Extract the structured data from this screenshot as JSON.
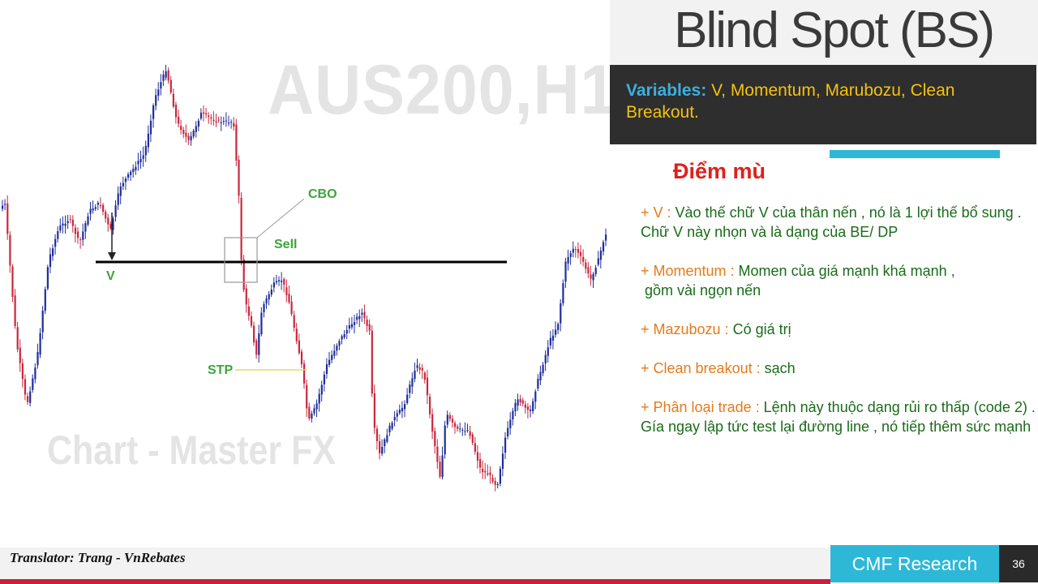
{
  "chart": {
    "symbol_watermark": "AUS200,H1",
    "brand_watermark": "Chart - Master FX",
    "annotations": {
      "cbo": "CBO",
      "sell": "Sell",
      "v": "V",
      "stp": "STP"
    },
    "colors": {
      "bull": "#1f2e9a",
      "bear": "#c8283e",
      "level_line": "#000000",
      "annotation": "#3aa63a",
      "stp_line": "#e8d85a"
    }
  },
  "panel": {
    "title": "Blind Spot (BS)",
    "variables_label": "Variables:",
    "variables_text": " V, Momentum, Marubozu, Clean Breakout.",
    "subtitle": "Điểm mù",
    "notes": [
      {
        "key": "+ V :",
        "text": " Vào thế chữ V của thân nến , nó là 1 lợi thế bổ sung . Chữ V này nhọn và là dạng của BE/ DP"
      },
      {
        "key": "+ Momentum :",
        "text": " Momen của giá mạnh khá mạnh ,\n gồm vài ngọn nến"
      },
      {
        "key": "+ Mazubozu :",
        "text": " Có giá trị"
      },
      {
        "key": "+ Clean breakout :",
        "text": " sạch"
      },
      {
        "key": "+ Phân loại trade :",
        "text": " Lệnh này thuộc dạng rủi ro thấp (code 2) .\nGía ngay lập tức test lại đường line , nó tiếp thêm sức mạnh"
      }
    ]
  },
  "footer": {
    "translator": "Translator: Trang - VnRebates",
    "brand": "CMF Research",
    "page_number": "36"
  }
}
